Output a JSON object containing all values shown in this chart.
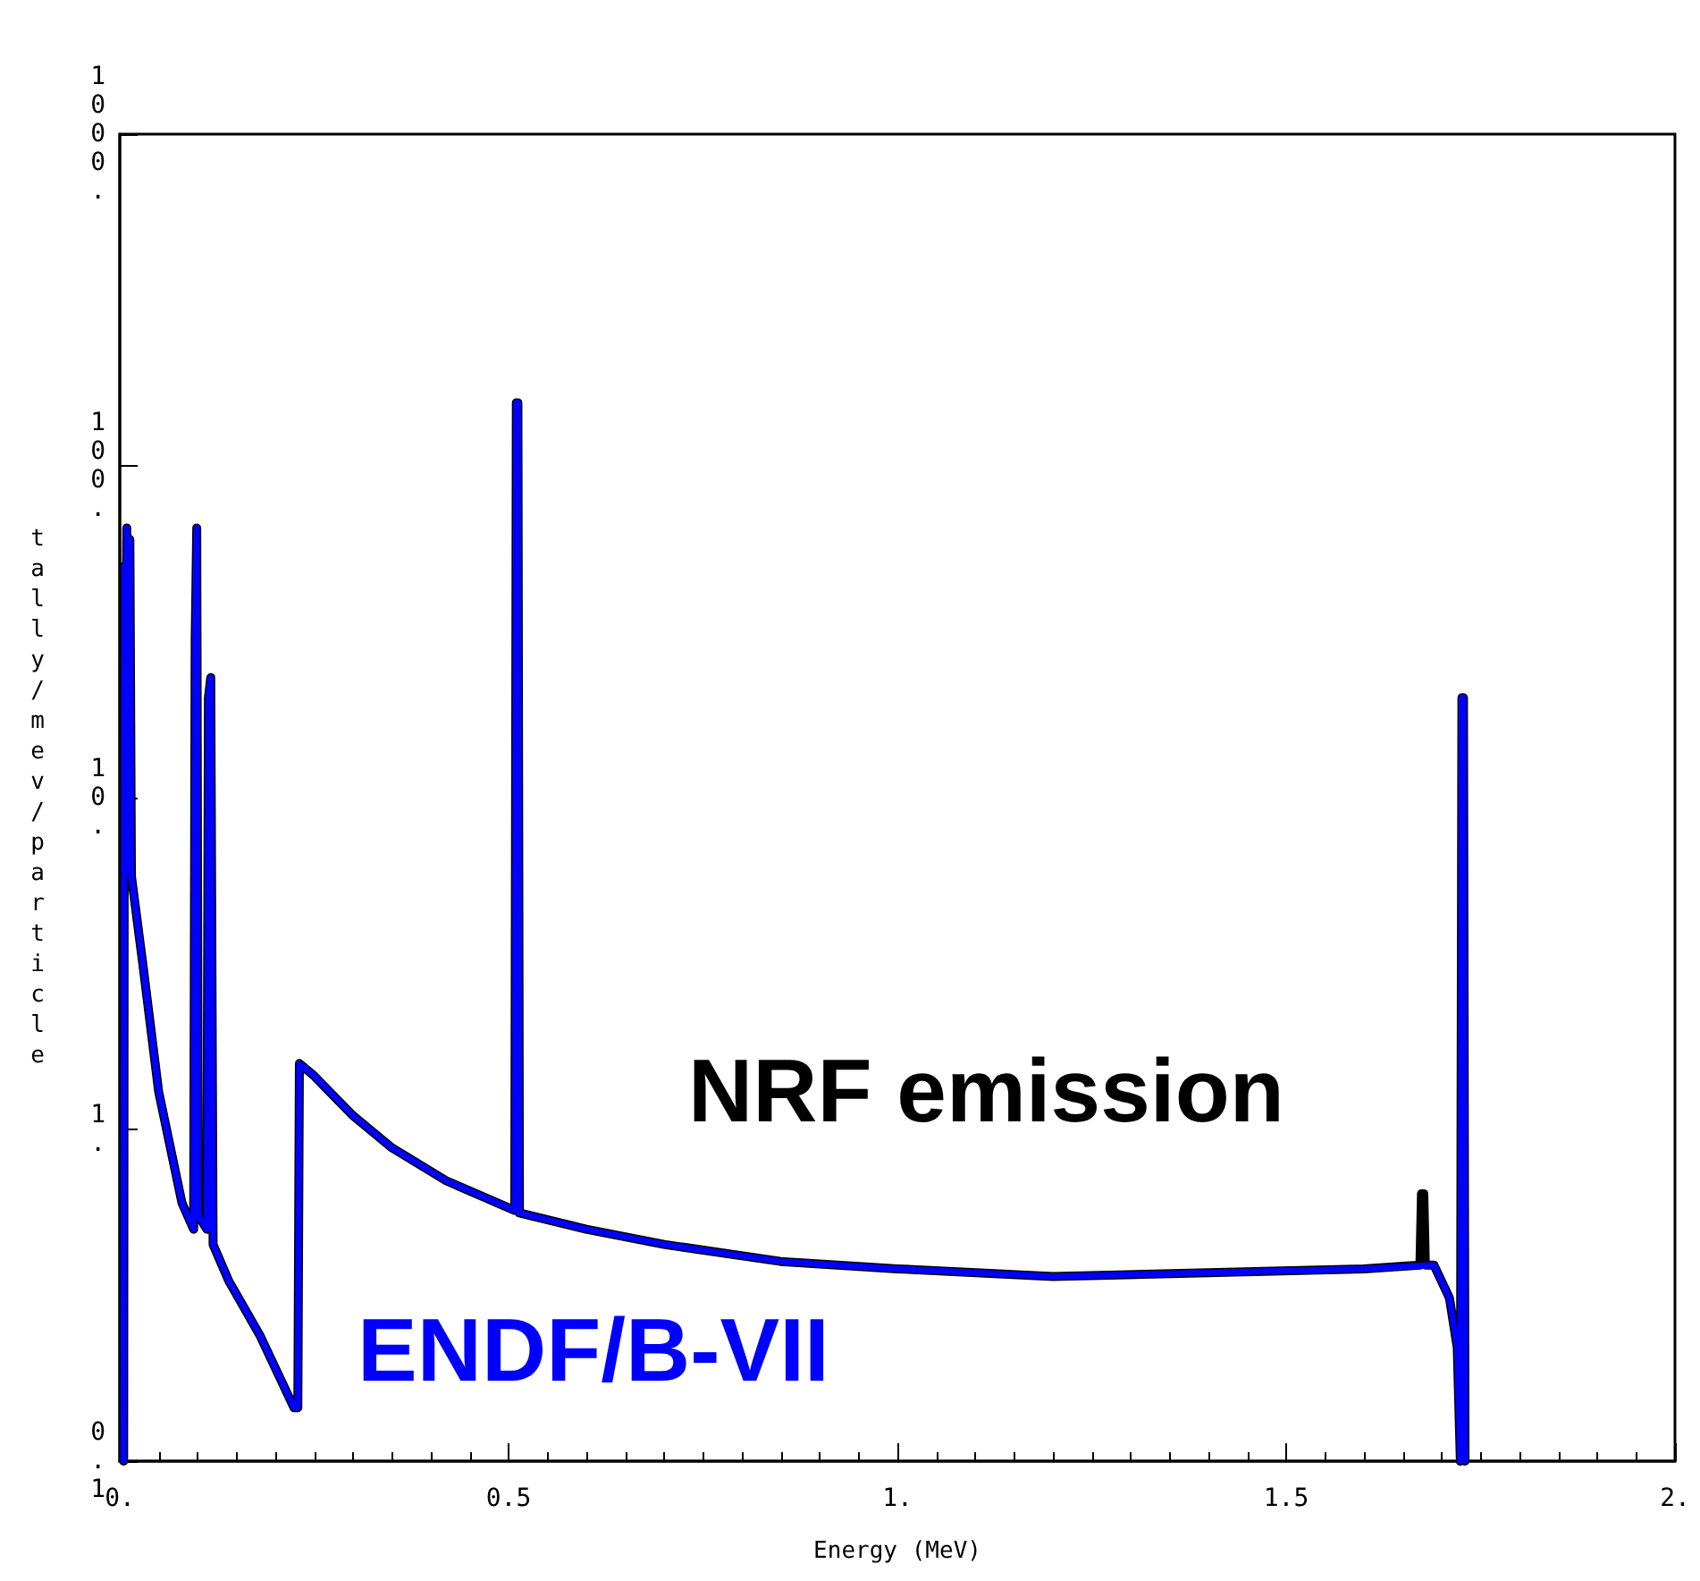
{
  "chart_data": {
    "type": "line",
    "xlabel": "Energy (MeV)",
    "ylabel": "tally/mev/particle",
    "log": "y",
    "grid": false,
    "legend": false,
    "marker": "none",
    "line_style": "solid",
    "xlim": [
      0,
      2
    ],
    "xticks": [
      {
        "value": 0,
        "label": "0."
      },
      {
        "value": 0.5,
        "label": "0.5"
      },
      {
        "value": 1,
        "label": "1."
      },
      {
        "value": 1.5,
        "label": "1.5"
      },
      {
        "value": 2,
        "label": "2."
      }
    ],
    "ylim": [
      0.1,
      1000
    ],
    "yticks": [
      {
        "value": 0.1,
        "label": "0.1"
      },
      {
        "value": 1,
        "label": "1."
      },
      {
        "value": 10,
        "label": "10."
      },
      {
        "value": 100,
        "label": "100."
      },
      {
        "value": 1000,
        "label": "1000."
      }
    ],
    "series": [
      {
        "name": "NRF emission",
        "color": "#000000",
        "x": [
          0.005,
          0.006,
          0.007,
          0.009,
          0.011,
          0.013,
          0.015,
          0.03,
          0.05,
          0.08,
          0.095,
          0.097,
          0.099,
          0.101,
          0.112,
          0.114,
          0.117,
          0.12,
          0.14,
          0.18,
          0.224,
          0.229,
          0.231,
          0.25,
          0.3,
          0.35,
          0.42,
          0.508,
          0.51,
          0.512,
          0.514,
          0.6,
          0.7,
          0.85,
          1.0,
          1.2,
          1.4,
          1.6,
          1.672,
          1.674,
          1.677,
          1.679,
          1.69,
          1.71,
          1.72,
          1.724,
          1.726,
          1.728,
          1.73
        ],
        "values": [
          0.1,
          50,
          8,
          65,
          6,
          60,
          5.8,
          3.1,
          1.3,
          0.6,
          0.5,
          30,
          65,
          0.55,
          0.5,
          20,
          23,
          0.45,
          0.35,
          0.24,
          0.145,
          0.145,
          1.58,
          1.45,
          1.1,
          0.88,
          0.7,
          0.57,
          155,
          155,
          0.56,
          0.5,
          0.45,
          0.4,
          0.38,
          0.36,
          0.37,
          0.38,
          0.39,
          0.64,
          0.64,
          0.39,
          0.39,
          0.31,
          0.22,
          0.1,
          20,
          20,
          0.1
        ]
      },
      {
        "name": "ENDF/B-VII",
        "color": "#0000ff",
        "x": [
          0.005,
          0.006,
          0.007,
          0.009,
          0.011,
          0.013,
          0.015,
          0.03,
          0.05,
          0.08,
          0.095,
          0.097,
          0.099,
          0.101,
          0.112,
          0.114,
          0.117,
          0.12,
          0.14,
          0.18,
          0.224,
          0.229,
          0.231,
          0.25,
          0.3,
          0.35,
          0.42,
          0.508,
          0.51,
          0.512,
          0.514,
          0.6,
          0.7,
          0.85,
          1.0,
          1.2,
          1.4,
          1.6,
          1.69,
          1.71,
          1.72,
          1.724,
          1.726,
          1.728,
          1.73
        ],
        "values": [
          0.1,
          50,
          8,
          65,
          6,
          60,
          5.8,
          3.1,
          1.3,
          0.6,
          0.5,
          30,
          65,
          0.55,
          0.5,
          20,
          23,
          0.45,
          0.35,
          0.24,
          0.145,
          0.145,
          1.58,
          1.45,
          1.1,
          0.88,
          0.7,
          0.57,
          155,
          155,
          0.56,
          0.5,
          0.45,
          0.4,
          0.38,
          0.36,
          0.37,
          0.38,
          0.39,
          0.31,
          0.22,
          0.1,
          20,
          20,
          0.1
        ]
      }
    ]
  }
}
